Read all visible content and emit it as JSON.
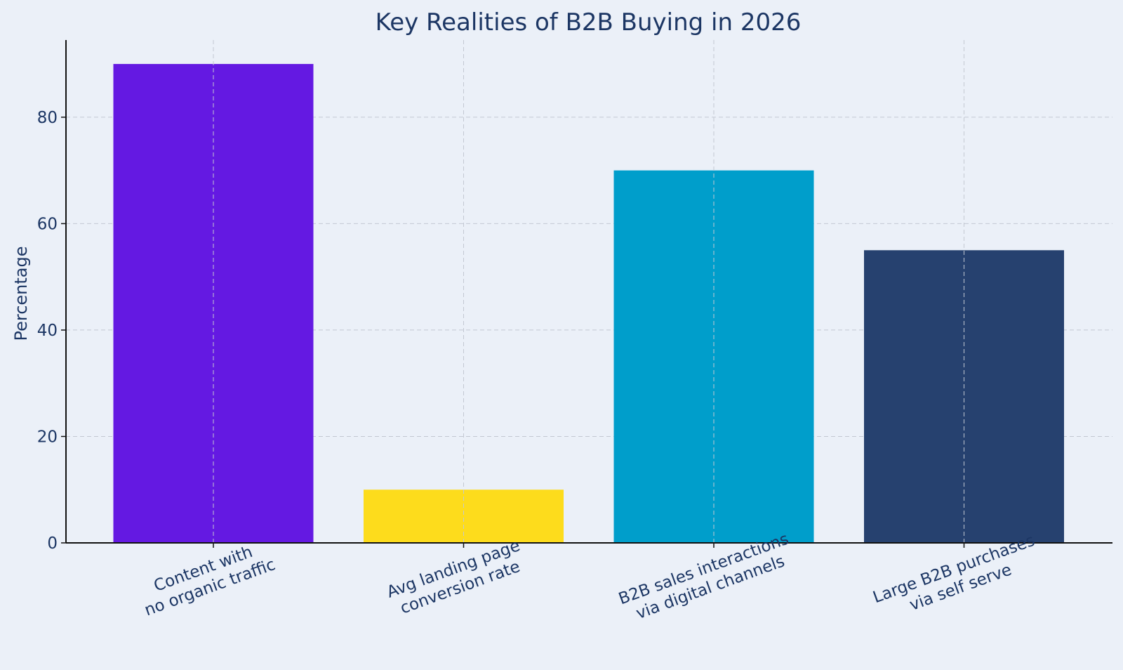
{
  "chart_data": {
    "type": "bar",
    "title": "Key Realities of B2B Buying in 2026",
    "xlabel": "",
    "ylabel": "Percentage",
    "categories": [
      [
        "Content with",
        "no organic traffic"
      ],
      [
        "Avg landing page",
        "conversion rate"
      ],
      [
        "B2B sales interactions",
        "via digital channels"
      ],
      [
        "Large B2B purchases",
        "via self serve"
      ]
    ],
    "values": [
      90,
      10,
      70,
      55
    ],
    "colors": [
      "#6419e2",
      "#fddc1c",
      "#009ecb",
      "#26416f"
    ],
    "ylim": [
      0,
      94.5
    ],
    "yticks": [
      0,
      20,
      40,
      60,
      80
    ],
    "grid": true,
    "legend": "none"
  }
}
